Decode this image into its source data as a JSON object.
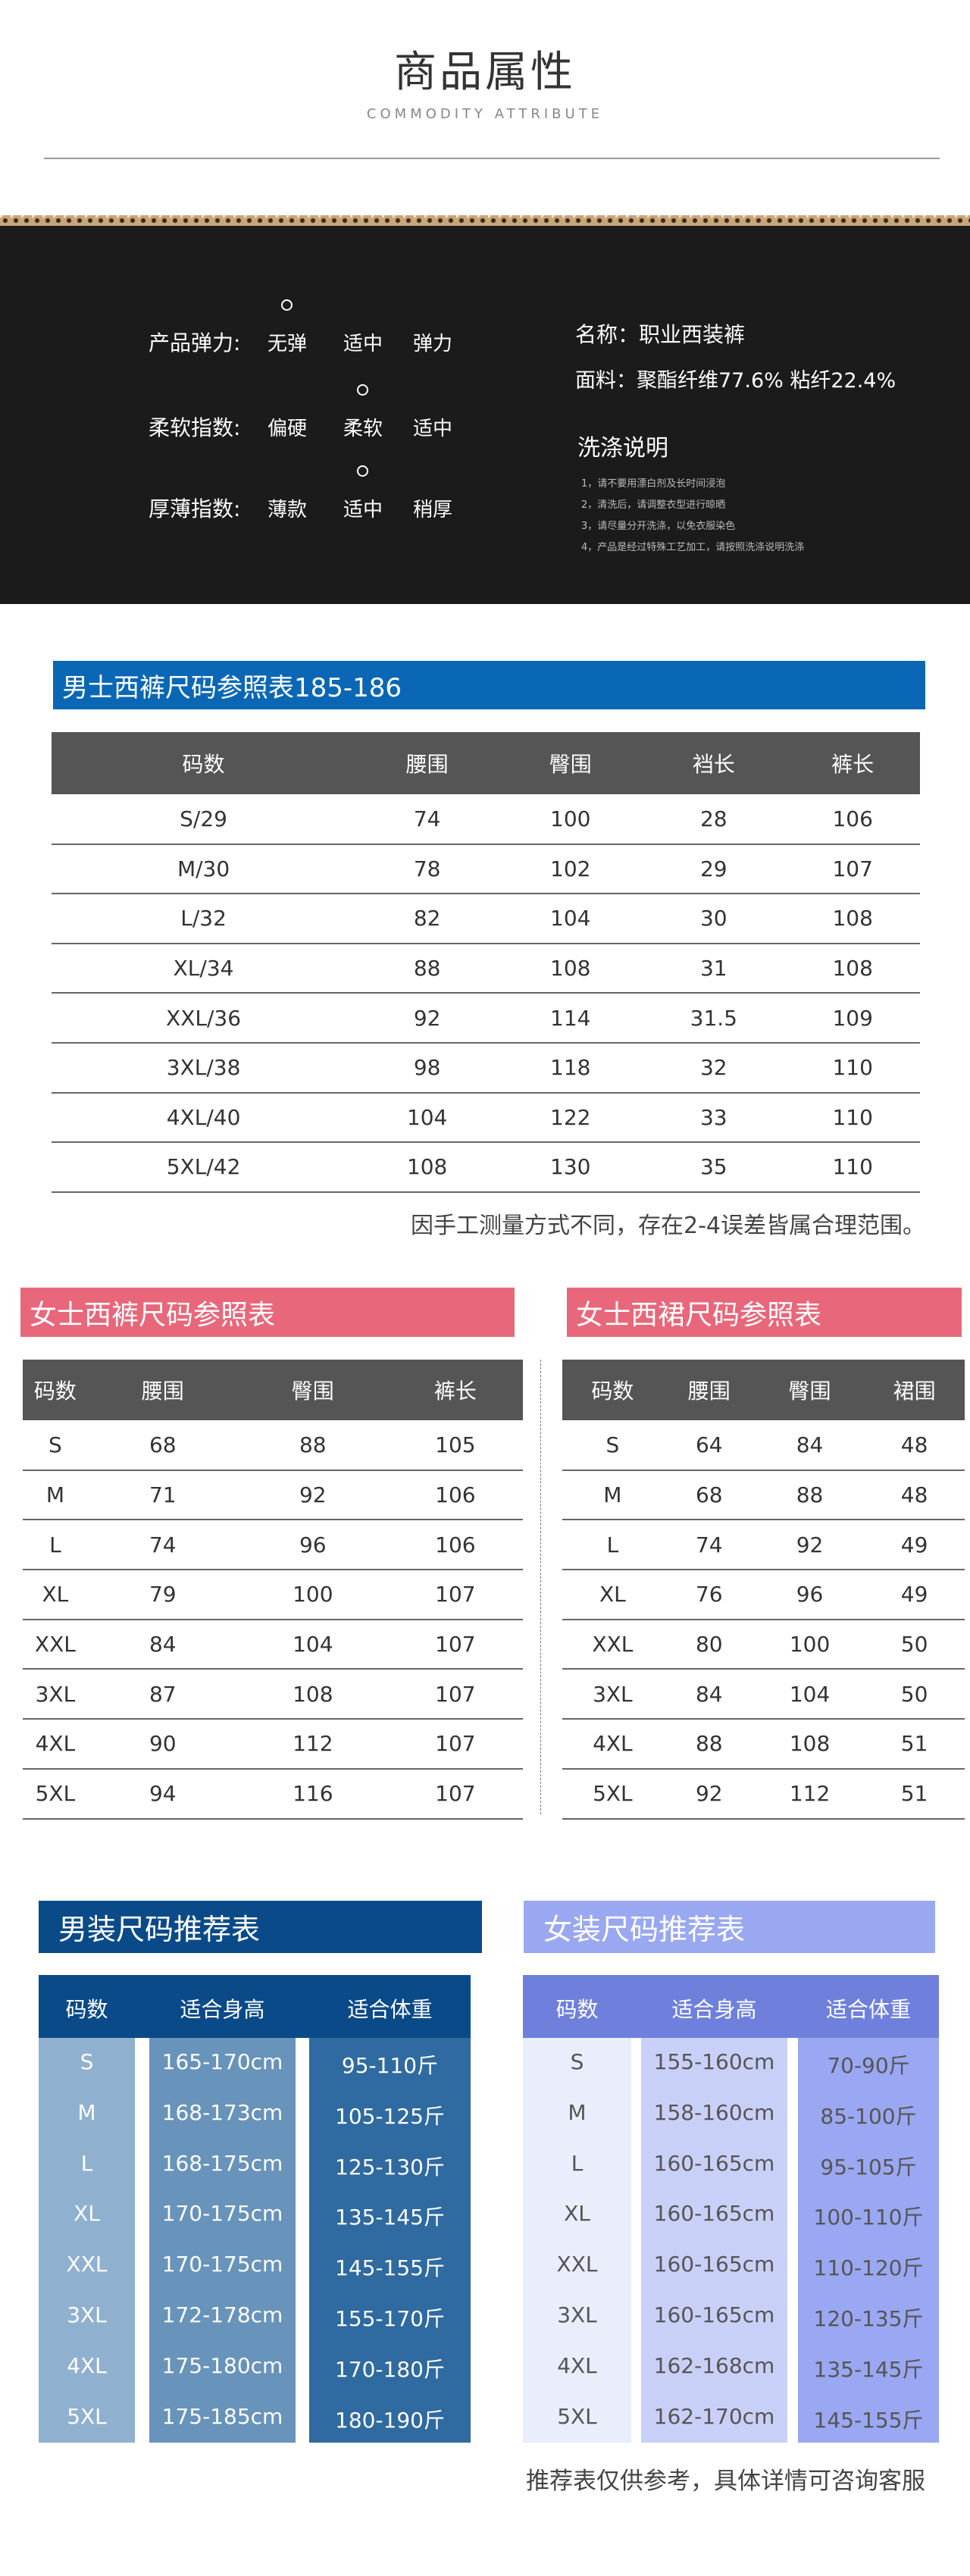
{
  "header": {
    "title": "商品属性",
    "subtitle": "COMMODITY ATTRIBUTE"
  },
  "attributes": [
    {
      "label": "产品弹力:",
      "options": [
        "无弹",
        "适中",
        "弹力"
      ],
      "selected": 0
    },
    {
      "label": "柔软指数:",
      "options": [
        "偏硬",
        "柔软",
        "适中"
      ],
      "selected": 1
    },
    {
      "label": "厚薄指数:",
      "options": [
        "薄款",
        "适中",
        "稍厚"
      ],
      "selected": 1
    }
  ],
  "info": {
    "name": "名称：职业西装裤",
    "fabric": "面料：聚酯纤维77.6% 粘纤22.4%",
    "care_title": "洗涤说明",
    "care": [
      "1，请不要用漂白剂及长时间浸泡",
      "2，清洗后，请调整衣型进行晾晒",
      "3，请尽量分开洗涤，以免衣服染色",
      "4，产品是经过特殊工艺加工，请按照洗涤说明洗涤"
    ]
  },
  "mens_pants": {
    "title": "男士西裤尺码参照表185-186",
    "color": "#0a67b5",
    "headers": [
      "码数",
      "腰围",
      "臀围",
      "裆长",
      "裤长"
    ],
    "rows": [
      [
        "S/29",
        "74",
        "100",
        "28",
        "106"
      ],
      [
        "M/30",
        "78",
        "102",
        "29",
        "107"
      ],
      [
        "L/32",
        "82",
        "104",
        "30",
        "108"
      ],
      [
        "XL/34",
        "88",
        "108",
        "31",
        "108"
      ],
      [
        "XXL/36",
        "92",
        "114",
        "31.5",
        "109"
      ],
      [
        "3XL/38",
        "98",
        "118",
        "32",
        "110"
      ],
      [
        "4XL/40",
        "104",
        "122",
        "33",
        "110"
      ],
      [
        "5XL/42",
        "108",
        "130",
        "35",
        "110"
      ]
    ],
    "note": "因手工测量方式不同，存在2-4误差皆属合理范围。"
  },
  "womens_pants": {
    "title": "女士西裤尺码参照表",
    "color": "#e8677a",
    "headers": [
      "码数",
      "腰围",
      "臀围",
      "裤长"
    ],
    "rows": [
      [
        "S",
        "68",
        "88",
        "105"
      ],
      [
        "M",
        "71",
        "92",
        "106"
      ],
      [
        "L",
        "74",
        "96",
        "106"
      ],
      [
        "XL",
        "79",
        "100",
        "107"
      ],
      [
        "XXL",
        "84",
        "104",
        "107"
      ],
      [
        "3XL",
        "87",
        "108",
        "107"
      ],
      [
        "4XL",
        "90",
        "112",
        "107"
      ],
      [
        "5XL",
        "94",
        "116",
        "107"
      ]
    ]
  },
  "womens_skirt": {
    "title": "女士西裙尺码参照表",
    "color": "#e8677a",
    "headers": [
      "码数",
      "腰围",
      "臀围",
      "裙围"
    ],
    "rows": [
      [
        "S",
        "64",
        "84",
        "48"
      ],
      [
        "M",
        "68",
        "88",
        "48"
      ],
      [
        "L",
        "74",
        "92",
        "49"
      ],
      [
        "XL",
        "76",
        "96",
        "49"
      ],
      [
        "XXL",
        "80",
        "100",
        "50"
      ],
      [
        "3XL",
        "84",
        "104",
        "50"
      ],
      [
        "4XL",
        "88",
        "108",
        "51"
      ],
      [
        "5XL",
        "92",
        "112",
        "51"
      ]
    ]
  },
  "mens_rec": {
    "title": "男装尺码推荐表",
    "color": "#0b4a88",
    "headers": [
      "码数",
      "适合身高",
      "适合体重"
    ],
    "rows": [
      [
        "S",
        "165-170cm",
        "95-110斤"
      ],
      [
        "M",
        "168-173cm",
        "105-125斤"
      ],
      [
        "L",
        "168-175cm",
        "125-130斤"
      ],
      [
        "XL",
        "170-175cm",
        "135-145斤"
      ],
      [
        "XXL",
        "170-175cm",
        "145-155斤"
      ],
      [
        "3XL",
        "172-178cm",
        "155-170斤"
      ],
      [
        "4XL",
        "175-180cm",
        "170-180斤"
      ],
      [
        "5XL",
        "175-185cm",
        "180-190斤"
      ]
    ]
  },
  "womens_rec": {
    "title": "女装尺码推荐表",
    "color": "#99a8f0",
    "headers": [
      "码数",
      "适合身高",
      "适合体重"
    ],
    "rows": [
      [
        "S",
        "155-160cm",
        "70-90斤"
      ],
      [
        "M",
        "158-160cm",
        "85-100斤"
      ],
      [
        "L",
        "160-165cm",
        "95-105斤"
      ],
      [
        "XL",
        "160-165cm",
        "100-110斤"
      ],
      [
        "XXL",
        "160-165cm",
        "110-120斤"
      ],
      [
        "3XL",
        "160-165cm",
        "120-135斤"
      ],
      [
        "4XL",
        "162-168cm",
        "135-145斤"
      ],
      [
        "5XL",
        "162-170cm",
        "145-155斤"
      ]
    ]
  },
  "rec_note": "推荐表仅供参考，具体详情可咨询客服"
}
